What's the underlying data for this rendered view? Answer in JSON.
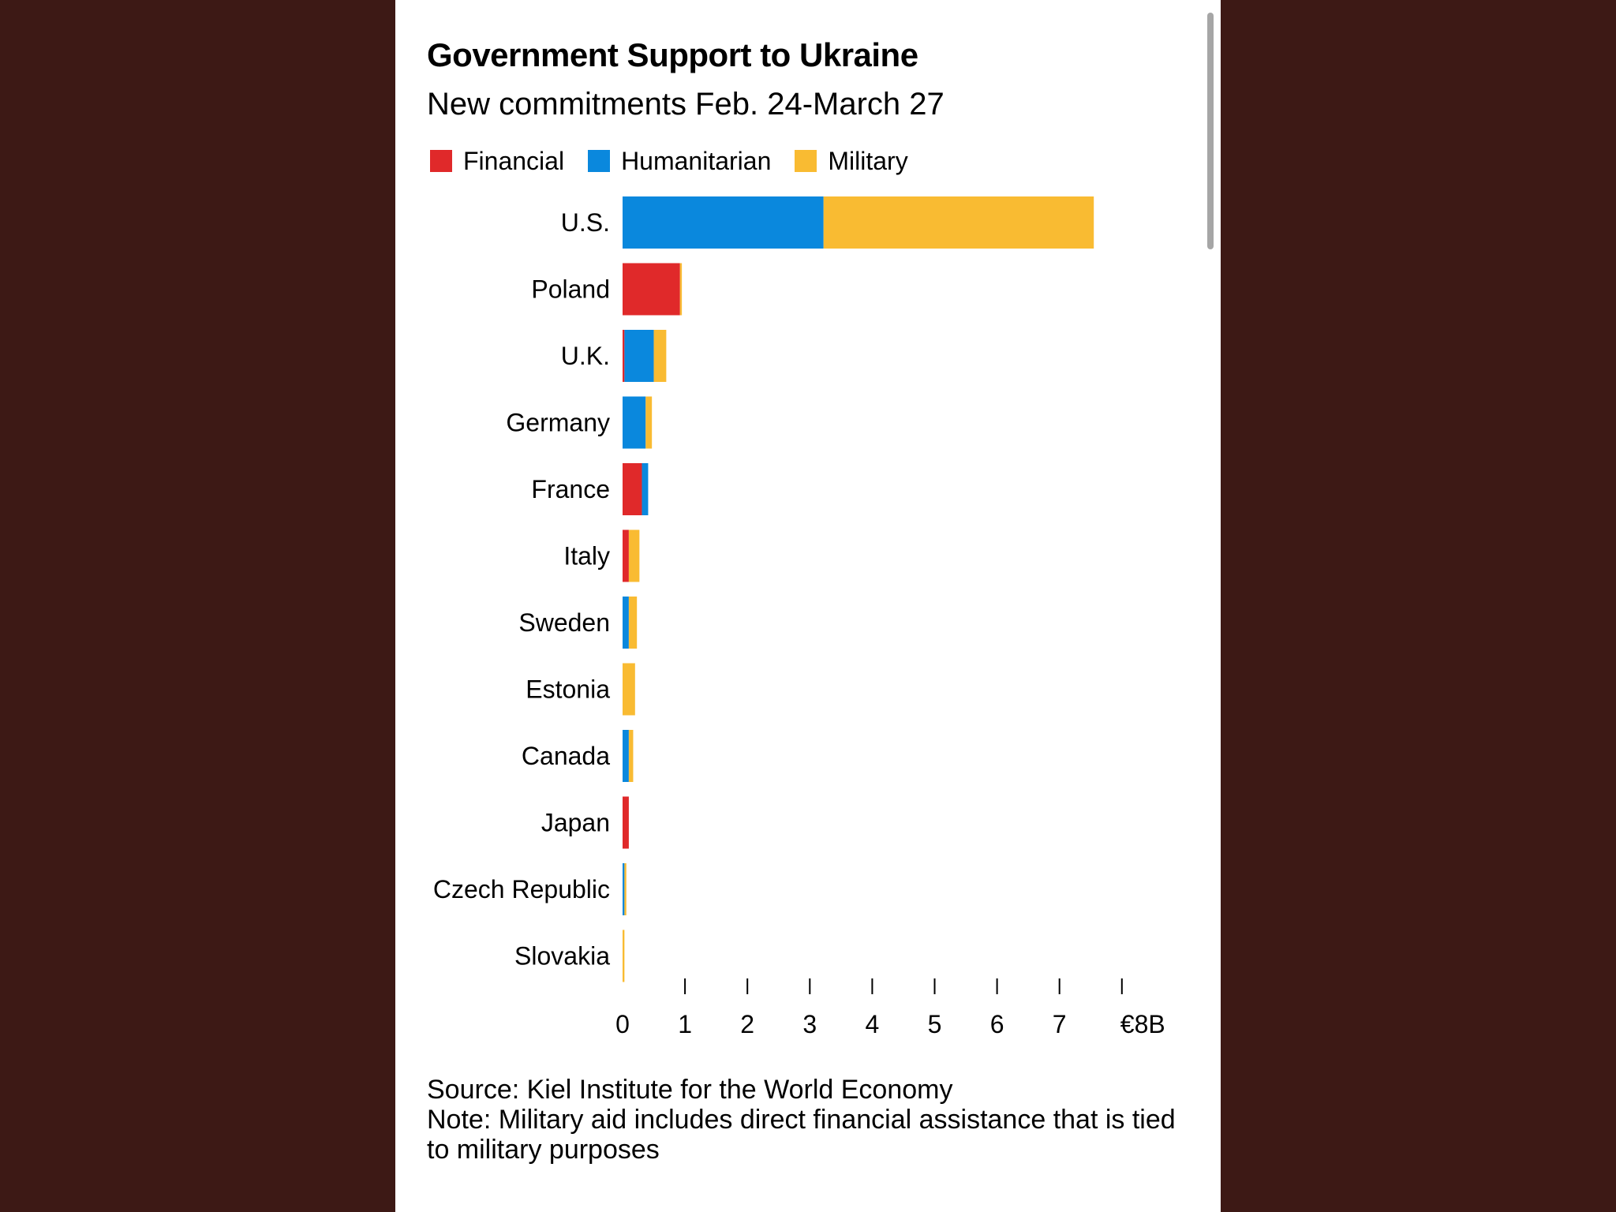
{
  "colors": {
    "background": "#3d1915",
    "panel": "#ffffff",
    "financial": "#e0292a",
    "humanitarian": "#0a88dd",
    "military": "#f9bb32",
    "text": "#000000"
  },
  "legend": [
    {
      "label": "Financial",
      "color": "#e0292a"
    },
    {
      "label": "Humanitarian",
      "color": "#0a88dd"
    },
    {
      "label": "Military",
      "color": "#f9bb32"
    }
  ],
  "chart_data": {
    "type": "bar",
    "orientation": "horizontal",
    "stacked": true,
    "title": "Government Support to Ukraine",
    "subtitle": "New commitments Feb. 24-March 27",
    "xlabel": "",
    "ylabel": "",
    "xlim": [
      0,
      8
    ],
    "x_ticks": [
      0,
      1,
      2,
      3,
      4,
      5,
      6,
      7,
      8
    ],
    "x_tick_labels": [
      "0",
      "1",
      "2",
      "3",
      "4",
      "5",
      "6",
      "7",
      "€8B"
    ],
    "categories": [
      "U.S.",
      "Poland",
      "U.K.",
      "Germany",
      "France",
      "Italy",
      "Sweden",
      "Estonia",
      "Canada",
      "Japan",
      "Czech Republic",
      "Slovakia"
    ],
    "series": [
      {
        "name": "Financial",
        "color": "#e0292a",
        "values": [
          0,
          0.92,
          0.03,
          0,
          0.31,
          0.1,
          0,
          0,
          0,
          0.1,
          0,
          0
        ]
      },
      {
        "name": "Humanitarian",
        "color": "#0a88dd",
        "values": [
          3.22,
          0,
          0.47,
          0.37,
          0.1,
          0,
          0.1,
          0,
          0.1,
          0,
          0.03,
          0
        ]
      },
      {
        "name": "Military",
        "color": "#f9bb32",
        "values": [
          4.33,
          0.03,
          0.2,
          0.1,
          0,
          0.17,
          0.13,
          0.2,
          0.07,
          0,
          0.03,
          0.03
        ]
      }
    ]
  },
  "footer": {
    "source": "Source: Kiel Institute for the World Economy",
    "note": "Note: Military aid includes direct financial assistance that is tied to military purposes"
  }
}
